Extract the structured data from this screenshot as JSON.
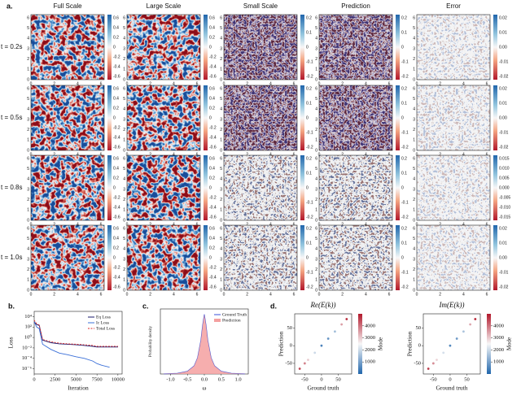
{
  "panel_a": {
    "label": "a.",
    "columns": [
      "Full Scale",
      "Large Scale",
      "Small Scale",
      "Prediction",
      "Error"
    ],
    "x_ticks": [
      "0",
      "2",
      "4",
      "6"
    ],
    "y_ticks": [
      "0",
      "1",
      "2",
      "3",
      "4",
      "5",
      "6"
    ],
    "rows": [
      {
        "label": "t = 0.2s",
        "colorbars": [
          [
            "0.6",
            "0.4",
            "0.2",
            "0",
            "-0.2",
            "-0.4",
            "-0.6"
          ],
          [
            "0.6",
            "0.4",
            "0.2",
            "0",
            "-0.2",
            "-0.4",
            "-0.6"
          ],
          [
            "0.2",
            "0.1",
            "0",
            "-0.1",
            "-0.2"
          ],
          [
            "0.2",
            "0.1",
            "0",
            "-0.1",
            "-0.2"
          ],
          [
            "0.02",
            "0.01",
            "0.00",
            "-0.01",
            "-0.02"
          ]
        ]
      },
      {
        "label": "t = 0.5s",
        "colorbars": [
          [
            "0.6",
            "0.4",
            "0.2",
            "0",
            "-0.2",
            "-0.4",
            "-0.6"
          ],
          [
            "0.6",
            "0.4",
            "0.2",
            "0",
            "-0.2",
            "-0.4",
            "-0.6"
          ],
          [
            "0.2",
            "0.1",
            "0",
            "-0.1",
            "-0.2"
          ],
          [
            "0.2",
            "0.1",
            "0",
            "-0.1",
            "-0.2"
          ],
          [
            "0.02",
            "0.01",
            "0.00",
            "-0.01",
            "-0.02"
          ]
        ]
      },
      {
        "label": "t = 0.8s",
        "colorbars": [
          [
            "0.6",
            "0.4",
            "0.2",
            "0",
            "-0.2",
            "-0.4",
            "-0.6"
          ],
          [
            "0.6",
            "0.4",
            "0.2",
            "0",
            "-0.2",
            "-0.4",
            "-0.6"
          ],
          [
            "0.2",
            "0.1",
            "0",
            "-0.1",
            "-0.2"
          ],
          [
            "0.2",
            "0.1",
            "0",
            "-0.1",
            "-0.2"
          ],
          [
            "0.015",
            "0.010",
            "0.005",
            "0.000",
            "-0.005",
            "-0.010",
            "-0.015"
          ]
        ]
      },
      {
        "label": "t = 1.0s",
        "colorbars": [
          [
            "0.6",
            "0.4",
            "0.2",
            "0",
            "-0.2",
            "-0.4",
            "-0.6"
          ],
          [
            "0.6",
            "0.4",
            "0.2",
            "0",
            "-0.2",
            "-0.4",
            "-0.6"
          ],
          [
            "0.2",
            "0.1",
            "0",
            "-0.1",
            "-0.2"
          ],
          [
            "0.2",
            "0.1",
            "0",
            "-0.1",
            "-0.2"
          ],
          [
            "0.02",
            "0.01",
            "0.00",
            "-0.01",
            "-0.02"
          ]
        ]
      }
    ]
  },
  "panel_labels": [
    "b.",
    "c.",
    "d."
  ],
  "chart_data": [
    {
      "type": "line",
      "xlabel": "Iteration",
      "ylabel": "Loss",
      "log_y": true,
      "legend": "upper right",
      "x": [
        0,
        300,
        600,
        1000,
        2000,
        3000,
        4000,
        5000,
        6000,
        7000,
        7500,
        8000,
        9000,
        10000
      ],
      "series": [
        {
          "name": "Eq Loss",
          "color": "#1a1a6e",
          "dashed": false,
          "values": [
            1000,
            300,
            200,
            0.3,
            0.1,
            0.06,
            0.05,
            0.04,
            0.03,
            0.02,
            0.015,
            0.015,
            0.015,
            0.015
          ]
        },
        {
          "name": "Ic Loss",
          "color": "#3a6fd8",
          "dashed": false,
          "values": [
            1000,
            100,
            50,
            0.05,
            0.005,
            0.001,
            0.0005,
            0.0002,
            0.0001,
            3e-05,
            1e-05,
            5e-06,
            2e-06,
            null
          ]
        },
        {
          "name": "Total Loss",
          "color": "#d62728",
          "dashed": true,
          "values": [
            2000,
            400,
            250,
            0.4,
            0.15,
            0.08,
            0.06,
            0.05,
            0.04,
            0.03,
            0.02,
            0.02,
            0.02,
            0.02
          ]
        }
      ],
      "xlim": [
        0,
        10500
      ],
      "ylim": [
        1e-07,
        100000
      ],
      "xticks": [
        0,
        2500,
        5000,
        7500,
        10000
      ],
      "yticks": [
        {
          "value": 10000,
          "label": "10⁴"
        },
        {
          "value": 100,
          "label": "10²"
        },
        {
          "value": 1,
          "label": "10⁰"
        },
        {
          "value": 0.01,
          "label": "10⁻²"
        },
        {
          "value": 0.0001,
          "label": "10⁻⁴"
        },
        {
          "value": 1e-06,
          "label": "10⁻⁶"
        }
      ]
    },
    {
      "type": "density",
      "xlabel": "ω",
      "ylabel": "Probability density",
      "legend": "upper right",
      "x": [
        -1.2,
        -0.8,
        -0.5,
        -0.3,
        -0.2,
        -0.1,
        -0.05,
        0,
        0.05,
        0.1,
        0.2,
        0.3,
        0.5,
        0.8,
        1.2
      ],
      "series": [
        {
          "name": "Ground Truth",
          "color": "#3a4fd8",
          "style": "line",
          "values": [
            0.01,
            0.05,
            0.2,
            0.6,
            1.2,
            2.5,
            3.6,
            4.4,
            3.6,
            2.5,
            1.2,
            0.6,
            0.2,
            0.05,
            0.01
          ]
        },
        {
          "name": "Prediction",
          "color": "#f4a0a0",
          "style": "area",
          "values": [
            0.01,
            0.05,
            0.2,
            0.6,
            1.2,
            2.5,
            3.6,
            4.4,
            3.6,
            2.5,
            1.2,
            0.6,
            0.2,
            0.05,
            0.01
          ]
        }
      ],
      "xlim": [
        -1.3,
        1.3
      ],
      "ylim": [
        0,
        4.8
      ],
      "xticks": [
        {
          "value": -1,
          "label": "-1.0"
        },
        -0.5,
        {
          "value": 0,
          "label": "0.0"
        },
        0.5,
        {
          "value": 1,
          "label": "1.0"
        }
      ]
    },
    {
      "type": "scatter",
      "title": "Re(E(k))",
      "xlabel": "Ground truth",
      "ylabel": "Prediction",
      "x": [
        -65,
        -50,
        -40,
        -20,
        0,
        20,
        40,
        60,
        75
      ],
      "values": [
        -65,
        -50,
        -40,
        -20,
        0,
        20,
        40,
        60,
        75
      ],
      "mode": [
        4500,
        3800,
        3000,
        2000,
        500,
        800,
        1500,
        3500,
        4800
      ],
      "colorbar": {
        "label": "Mode",
        "lim": [
          0,
          5000
        ],
        "ticks": [
          1000,
          2000,
          3000,
          4000
        ]
      },
      "xlim": [
        -80,
        90
      ],
      "ylim": [
        -80,
        90
      ],
      "xticks": [
        -50,
        0,
        50
      ],
      "yticks": [
        -50,
        0,
        50
      ]
    },
    {
      "type": "scatter",
      "title": "Im(E(k))",
      "xlabel": "Ground truth",
      "ylabel": "Prediction",
      "x": [
        -65,
        -50,
        -40,
        -20,
        0,
        20,
        40,
        60,
        75
      ],
      "values": [
        -65,
        -50,
        -40,
        -20,
        0,
        20,
        40,
        60,
        75
      ],
      "mode": [
        4600,
        3700,
        2900,
        2100,
        600,
        900,
        1600,
        3400,
        4900
      ],
      "colorbar": {
        "label": "Mode",
        "lim": [
          0,
          5000
        ],
        "ticks": [
          1000,
          2000,
          3000,
          4000
        ]
      },
      "xlim": [
        -80,
        90
      ],
      "ylim": [
        -80,
        90
      ],
      "xticks": [
        -50,
        0,
        50
      ],
      "yticks": [
        -50,
        0,
        50
      ]
    }
  ]
}
